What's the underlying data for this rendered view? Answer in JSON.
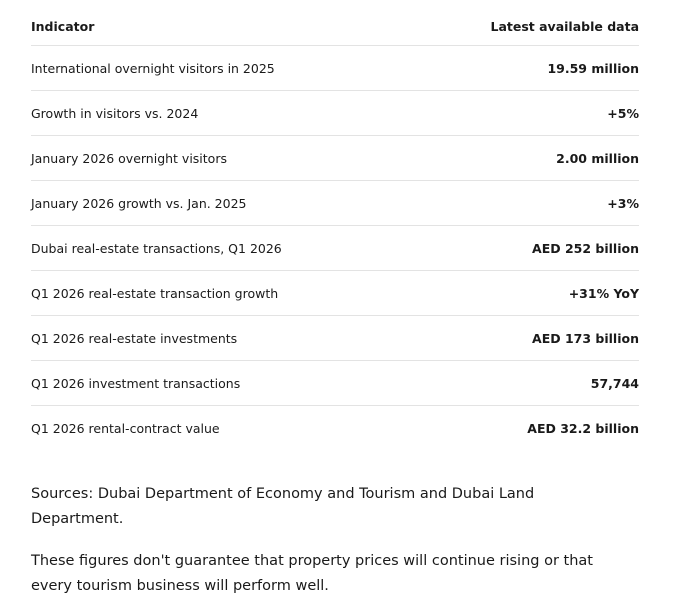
{
  "table": {
    "header": [
      "Indicator",
      "Latest available data"
    ],
    "rows": [
      [
        "International overnight visitors in 2025",
        "19.59 million"
      ],
      [
        "Growth in visitors vs. 2024",
        "+5%"
      ],
      [
        "January 2026 overnight visitors",
        "2.00 million"
      ],
      [
        "January 2026 growth vs. Jan. 2025",
        "+3%"
      ],
      [
        "Dubai real-estate transactions, Q1 2026",
        "AED 252 billion"
      ],
      [
        "Q1 2026 real-estate transaction growth",
        "+31% YoY"
      ],
      [
        "Q1 2026 real-estate investments",
        "AED 173 billion"
      ],
      [
        "Q1 2026 investment transactions",
        "57,744"
      ],
      [
        "Q1 2026 rental-contract value",
        "AED 32.2 billion"
      ]
    ]
  },
  "notes": {
    "sources": "Sources: Dubai Department of Economy and Tourism and Dubai Land Department.",
    "disclaimer": "These figures don't guarantee that property prices will continue rising or that every tourism business will perform well."
  }
}
